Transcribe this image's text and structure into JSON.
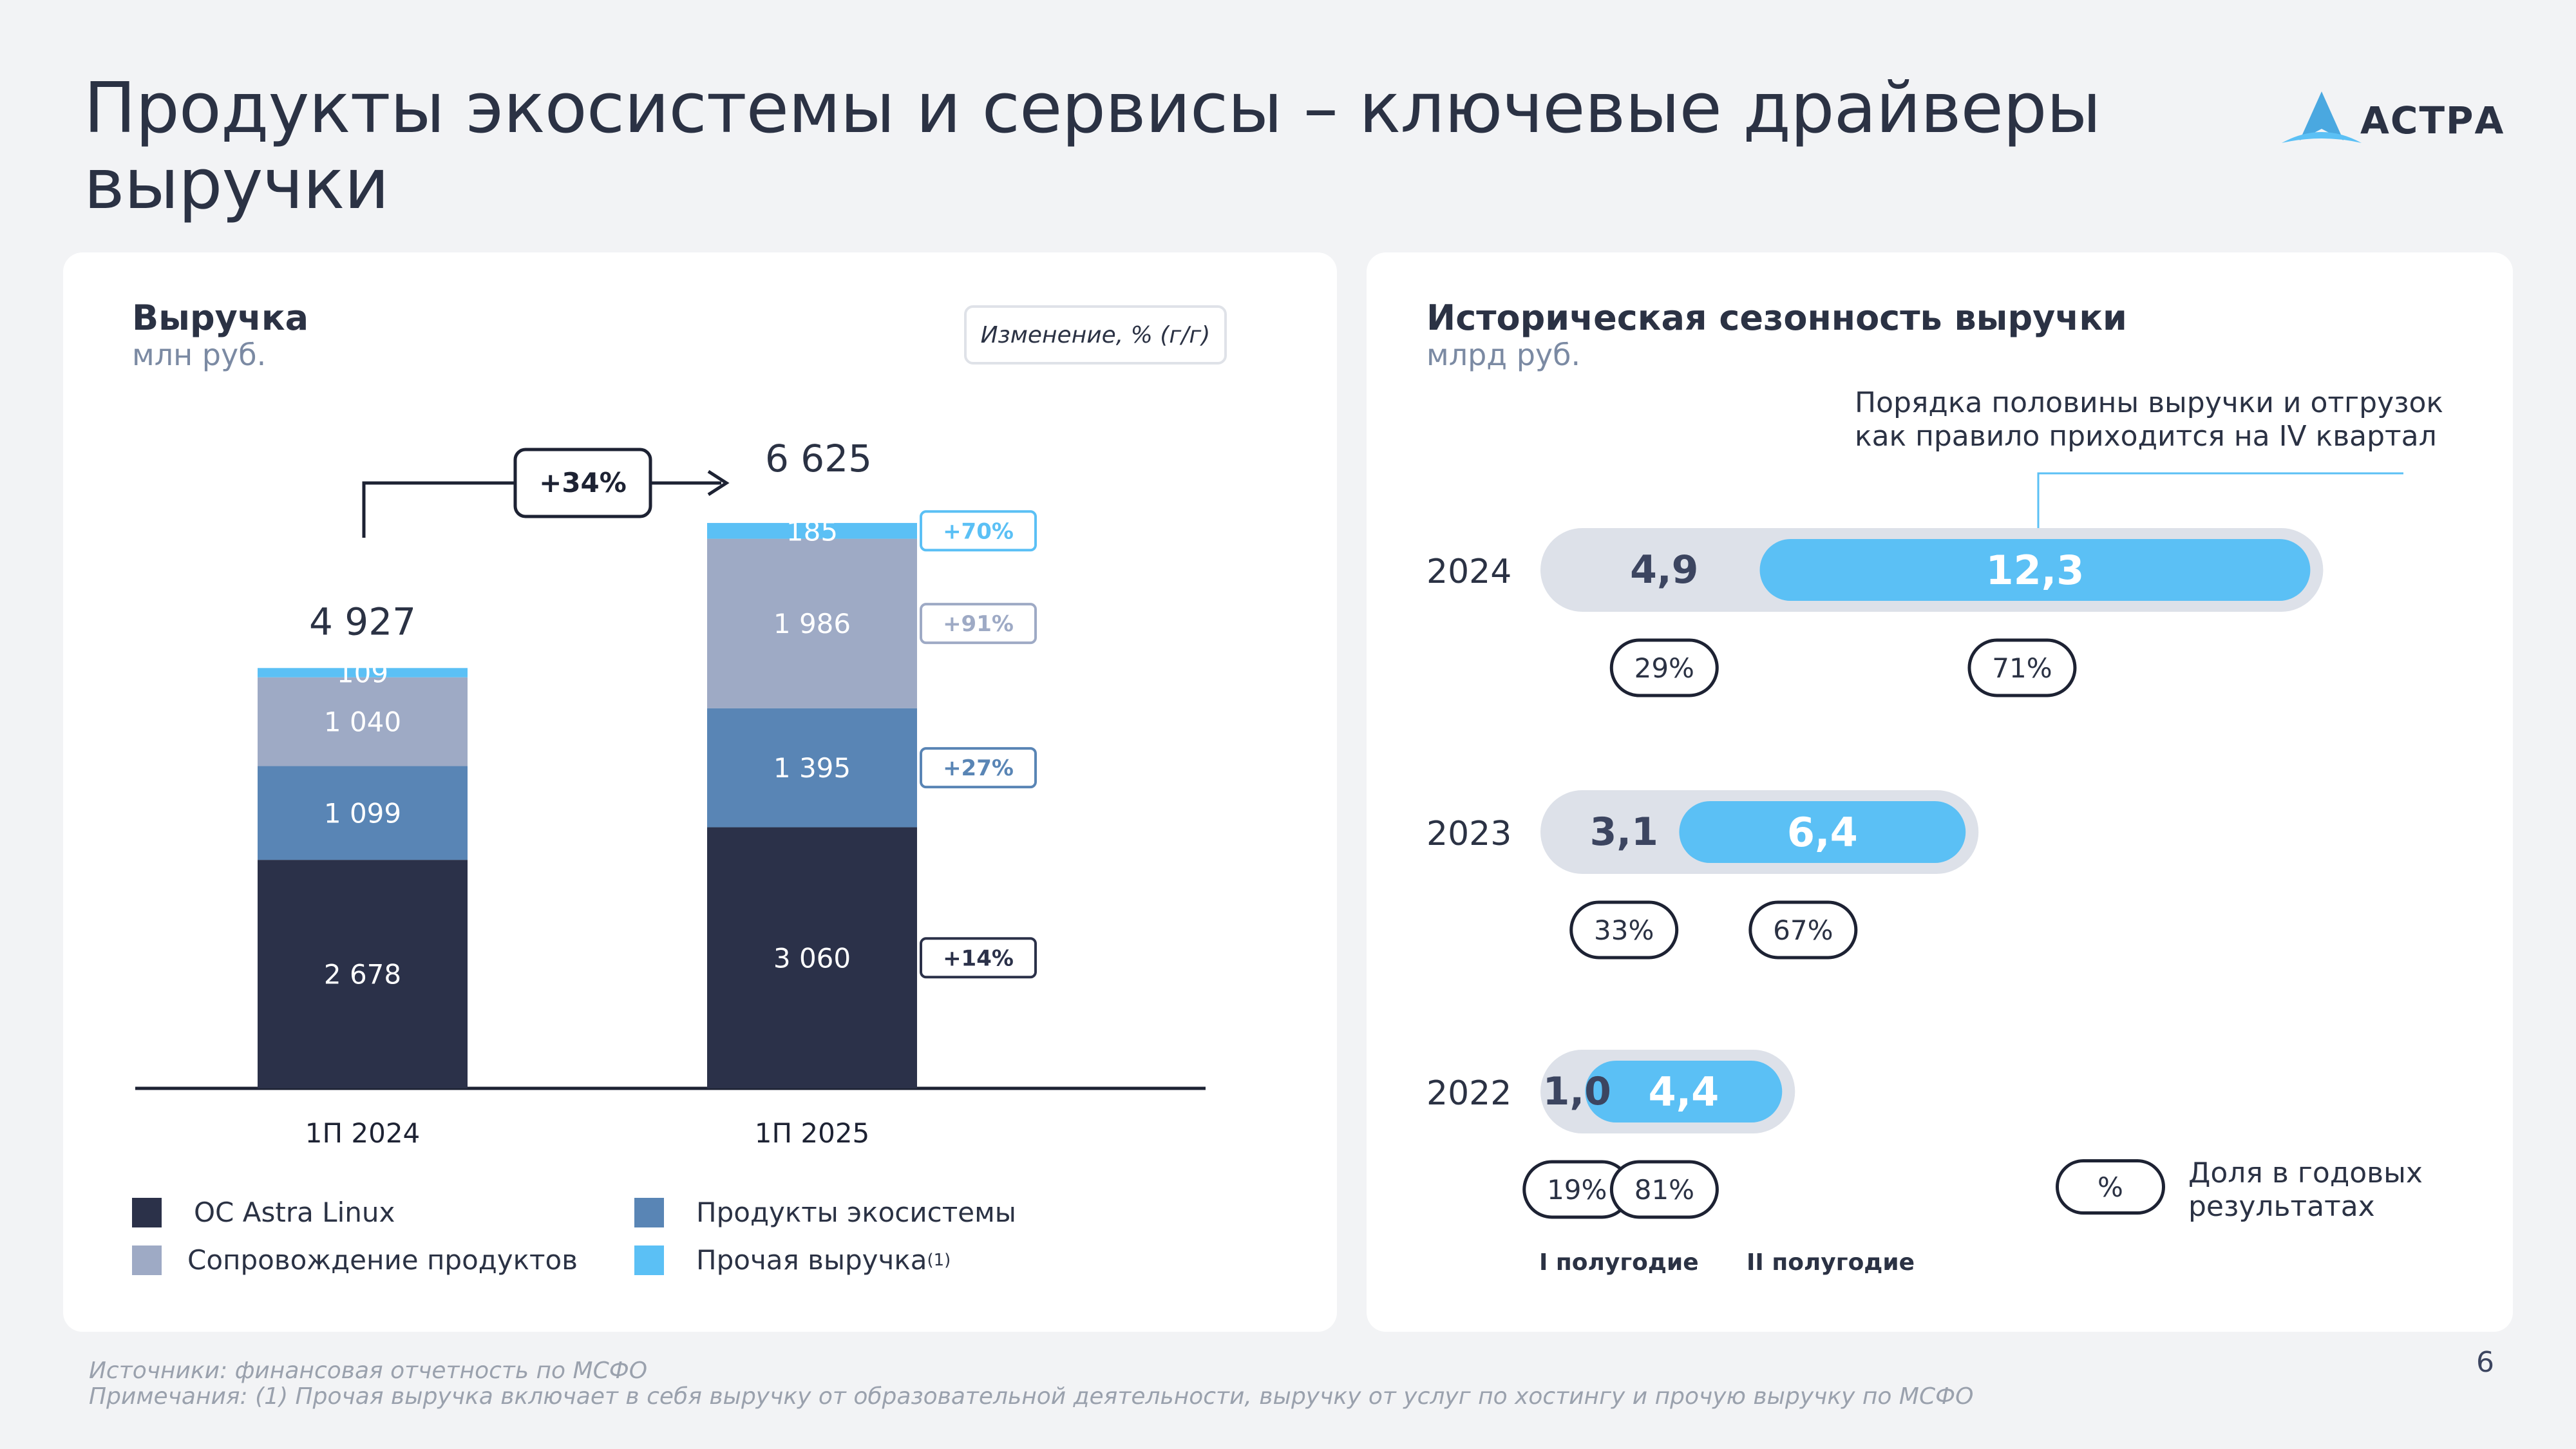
{
  "title": "Продукты экосистемы и сервисы – ключевые драйверы выручки",
  "logo": {
    "text": "АСТРА"
  },
  "left_card": {
    "title": "Выручка",
    "subtitle": "млн руб.",
    "change_label": "Изменение, % (г/г)",
    "growth_label": "+34%"
  },
  "chart_data": [
    {
      "type": "bar",
      "stacked": true,
      "categories": [
        "1П 2024",
        "1П 2025"
      ],
      "totals": [
        "4 927",
        "6 625"
      ],
      "series": [
        {
          "name": "ОС Astra Linux",
          "values": [
            2678,
            3060
          ],
          "labels": [
            "2 678",
            "3 060"
          ],
          "color": "#2b3149",
          "change": "+14%"
        },
        {
          "name": "Продукты экосистемы",
          "values": [
            1099,
            1395
          ],
          "labels": [
            "1 099",
            "1 395"
          ],
          "color": "#5985b5",
          "change": "+27%"
        },
        {
          "name": "Сопровождение продуктов",
          "values": [
            1040,
            1986
          ],
          "labels": [
            "1 040",
            "1 986"
          ],
          "color": "#9eaac5",
          "change": "+91%"
        },
        {
          "name": "Прочая выручка",
          "values": [
            109,
            185
          ],
          "labels": [
            "109",
            "185"
          ],
          "color": "#5bc0f5",
          "change": "+70%"
        }
      ]
    },
    {
      "type": "bar",
      "orientation": "horizontal",
      "stacked": true,
      "categories": [
        "2024",
        "2023",
        "2022"
      ],
      "series": [
        {
          "name": "I полугодие",
          "values": [
            4.9,
            3.1,
            1.0
          ],
          "labels": [
            "4,9",
            "3,1",
            "1,0"
          ],
          "shares": [
            "29%",
            "33%",
            "19%"
          ],
          "color": "#dde1e9"
        },
        {
          "name": "II полугодие",
          "values": [
            12.3,
            6.4,
            4.4
          ],
          "labels": [
            "12,3",
            "6,4",
            "4,4"
          ],
          "shares": [
            "71%",
            "67%",
            "81%"
          ],
          "color": "#5bc0f5"
        }
      ]
    }
  ],
  "legend": {
    "os": "ОС Astra Linux",
    "support": "Сопровождение продуктов",
    "eco": "Продукты экосистемы",
    "other": "Прочая выручка",
    "other_sup": "(1)"
  },
  "right_card": {
    "title": "Историческая сезонность выручки",
    "subtitle": "млрд руб.",
    "note_line1": "Порядка половины выручки и отгрузок",
    "note_line2": "как правило приходится на IV квартал",
    "half1": "I полугодие",
    "half2": "II полугодие",
    "share_symbol": "%",
    "share_line1": "Доля в годовых",
    "share_line2": "результатах"
  },
  "footer": {
    "sources": "Источники: финансовая отчетность по МСФО",
    "notes": "Примечания: (1) Прочая выручка включает в себя выручку от образовательной деятельности, выручку от услуг по хостингу и прочую выручку по МСФО"
  },
  "page_number": "6"
}
